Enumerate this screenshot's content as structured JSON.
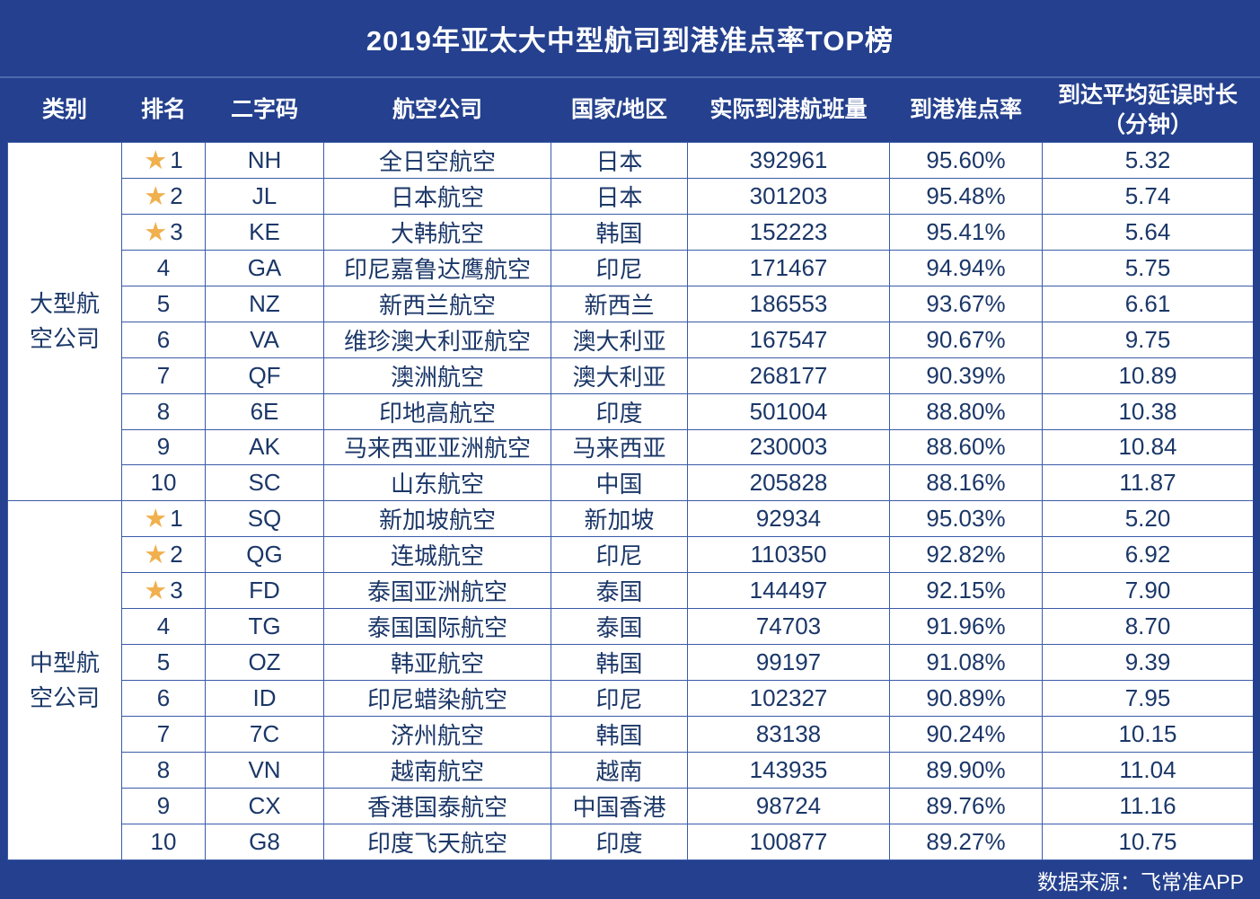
{
  "title": "2019年亚太大中型航司到港准点率TOP榜",
  "columns": [
    "类别",
    "排名",
    "二字码",
    "航空公司",
    "国家/地区",
    "实际到港航班量",
    "到港准点率",
    "到达平均延误时长\n（分钟）"
  ],
  "footer": {
    "source": "数据来源：飞常准APP"
  },
  "colors": {
    "background": "#24408E",
    "grid_line": "#3A5BA9",
    "body_text": "#1B3768",
    "star": "#F0B04E"
  },
  "groups": [
    {
      "category": "大型航空公司",
      "rows": [
        {
          "rank": "1",
          "starred": true,
          "code": "NH",
          "airline": "全日空航空",
          "country": "日本",
          "flights": "392961",
          "punctuality": "95.60%",
          "delay": "5.32"
        },
        {
          "rank": "2",
          "starred": true,
          "code": "JL",
          "airline": "日本航空",
          "country": "日本",
          "flights": "301203",
          "punctuality": "95.48%",
          "delay": "5.74"
        },
        {
          "rank": "3",
          "starred": true,
          "code": "KE",
          "airline": "大韩航空",
          "country": "韩国",
          "flights": "152223",
          "punctuality": "95.41%",
          "delay": "5.64"
        },
        {
          "rank": "4",
          "starred": false,
          "code": "GA",
          "airline": "印尼嘉鲁达鹰航空",
          "country": "印尼",
          "flights": "171467",
          "punctuality": "94.94%",
          "delay": "5.75"
        },
        {
          "rank": "5",
          "starred": false,
          "code": "NZ",
          "airline": "新西兰航空",
          "country": "新西兰",
          "flights": "186553",
          "punctuality": "93.67%",
          "delay": "6.61"
        },
        {
          "rank": "6",
          "starred": false,
          "code": "VA",
          "airline": "维珍澳大利亚航空",
          "country": "澳大利亚",
          "flights": "167547",
          "punctuality": "90.67%",
          "delay": "9.75"
        },
        {
          "rank": "7",
          "starred": false,
          "code": "QF",
          "airline": "澳洲航空",
          "country": "澳大利亚",
          "flights": "268177",
          "punctuality": "90.39%",
          "delay": "10.89"
        },
        {
          "rank": "8",
          "starred": false,
          "code": "6E",
          "airline": "印地高航空",
          "country": "印度",
          "flights": "501004",
          "punctuality": "88.80%",
          "delay": "10.38"
        },
        {
          "rank": "9",
          "starred": false,
          "code": "AK",
          "airline": "马来西亚亚洲航空",
          "country": "马来西亚",
          "flights": "230003",
          "punctuality": "88.60%",
          "delay": "10.84"
        },
        {
          "rank": "10",
          "starred": false,
          "code": "SC",
          "airline": "山东航空",
          "country": "中国",
          "flights": "205828",
          "punctuality": "88.16%",
          "delay": "11.87"
        }
      ]
    },
    {
      "category": "中型航空公司",
      "rows": [
        {
          "rank": "1",
          "starred": true,
          "code": "SQ",
          "airline": "新加坡航空",
          "country": "新加坡",
          "flights": "92934",
          "punctuality": "95.03%",
          "delay": "5.20"
        },
        {
          "rank": "2",
          "starred": true,
          "code": "QG",
          "airline": "连城航空",
          "country": "印尼",
          "flights": "110350",
          "punctuality": "92.82%",
          "delay": "6.92"
        },
        {
          "rank": "3",
          "starred": true,
          "code": "FD",
          "airline": "泰国亚洲航空",
          "country": "泰国",
          "flights": "144497",
          "punctuality": "92.15%",
          "delay": "7.90"
        },
        {
          "rank": "4",
          "starred": false,
          "code": "TG",
          "airline": "泰国国际航空",
          "country": "泰国",
          "flights": "74703",
          "punctuality": "91.96%",
          "delay": "8.70"
        },
        {
          "rank": "5",
          "starred": false,
          "code": "OZ",
          "airline": "韩亚航空",
          "country": "韩国",
          "flights": "99197",
          "punctuality": "91.08%",
          "delay": "9.39"
        },
        {
          "rank": "6",
          "starred": false,
          "code": "ID",
          "airline": "印尼蜡染航空",
          "country": "印尼",
          "flights": "102327",
          "punctuality": "90.89%",
          "delay": "7.95"
        },
        {
          "rank": "7",
          "starred": false,
          "code": "7C",
          "airline": "济州航空",
          "country": "韩国",
          "flights": "83138",
          "punctuality": "90.24%",
          "delay": "10.15"
        },
        {
          "rank": "8",
          "starred": false,
          "code": "VN",
          "airline": "越南航空",
          "country": "越南",
          "flights": "143935",
          "punctuality": "89.90%",
          "delay": "11.04"
        },
        {
          "rank": "9",
          "starred": false,
          "code": "CX",
          "airline": "香港国泰航空",
          "country": "中国香港",
          "flights": "98724",
          "punctuality": "89.76%",
          "delay": "11.16"
        },
        {
          "rank": "10",
          "starred": false,
          "code": "G8",
          "airline": "印度飞天航空",
          "country": "印度",
          "flights": "100877",
          "punctuality": "89.27%",
          "delay": "10.75"
        }
      ]
    }
  ],
  "chart_data": {
    "type": "table",
    "title": "2019年亚太大中型航司到港准点率TOP榜",
    "columns": [
      "类别",
      "排名",
      "二字码",
      "航空公司",
      "国家/地区",
      "实际到港航班量",
      "到港准点率",
      "到达平均延误时长（分钟）"
    ],
    "rows": [
      [
        "大型航空公司",
        1,
        "NH",
        "全日空航空",
        "日本",
        392961,
        "95.60%",
        5.32
      ],
      [
        "大型航空公司",
        2,
        "JL",
        "日本航空",
        "日本",
        301203,
        "95.48%",
        5.74
      ],
      [
        "大型航空公司",
        3,
        "KE",
        "大韩航空",
        "韩国",
        152223,
        "95.41%",
        5.64
      ],
      [
        "大型航空公司",
        4,
        "GA",
        "印尼嘉鲁达鹰航空",
        "印尼",
        171467,
        "94.94%",
        5.75
      ],
      [
        "大型航空公司",
        5,
        "NZ",
        "新西兰航空",
        "新西兰",
        186553,
        "93.67%",
        6.61
      ],
      [
        "大型航空公司",
        6,
        "VA",
        "维珍澳大利亚航空",
        "澳大利亚",
        167547,
        "90.67%",
        9.75
      ],
      [
        "大型航空公司",
        7,
        "QF",
        "澳洲航空",
        "澳大利亚",
        268177,
        "90.39%",
        10.89
      ],
      [
        "大型航空公司",
        8,
        "6E",
        "印地高航空",
        "印度",
        501004,
        "88.80%",
        10.38
      ],
      [
        "大型航空公司",
        9,
        "AK",
        "马来西亚亚洲航空",
        "马来西亚",
        230003,
        "88.60%",
        10.84
      ],
      [
        "大型航空公司",
        10,
        "SC",
        "山东航空",
        "中国",
        205828,
        "88.16%",
        11.87
      ],
      [
        "中型航空公司",
        1,
        "SQ",
        "新加坡航空",
        "新加坡",
        92934,
        "95.03%",
        5.2
      ],
      [
        "中型航空公司",
        2,
        "QG",
        "连城航空",
        "印尼",
        110350,
        "92.82%",
        6.92
      ],
      [
        "中型航空公司",
        3,
        "FD",
        "泰国亚洲航空",
        "泰国",
        144497,
        "92.15%",
        7.9
      ],
      [
        "中型航空公司",
        4,
        "TG",
        "泰国国际航空",
        "泰国",
        74703,
        "91.96%",
        8.7
      ],
      [
        "中型航空公司",
        5,
        "OZ",
        "韩亚航空",
        "韩国",
        99197,
        "91.08%",
        9.39
      ],
      [
        "中型航空公司",
        6,
        "ID",
        "印尼蜡染航空",
        "印尼",
        102327,
        "90.89%",
        7.95
      ],
      [
        "中型航空公司",
        7,
        "7C",
        "济州航空",
        "韩国",
        83138,
        "90.24%",
        10.15
      ],
      [
        "中型航空公司",
        8,
        "VN",
        "越南航空",
        "越南",
        143935,
        "89.90%",
        11.04
      ],
      [
        "中型航空公司",
        9,
        "CX",
        "香港国泰航空",
        "中国香港",
        98724,
        "89.76%",
        11.16
      ],
      [
        "中型航空公司",
        10,
        "G8",
        "印度飞天航空",
        "印度",
        100877,
        "89.27%",
        10.75
      ]
    ]
  }
}
